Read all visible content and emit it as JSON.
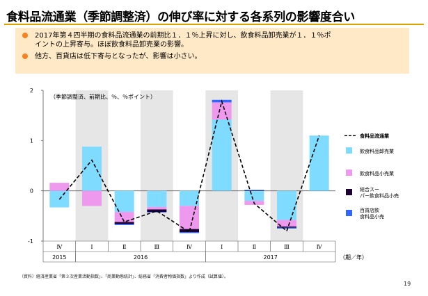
{
  "title": "食料品流通業（季節調整済）の伸び率に対する各系列の影響度合い",
  "bullets": [
    {
      "lines": [
        "2017年第４四半期の食料品流通業の前期比１．１％上昇に対し、飲食料品卸売業が１．１％ポ",
        "イントの上昇寄与。ほぼ飲食料品卸売業の影響。"
      ]
    },
    {
      "lines": [
        "他方、百貨店は低下寄与となったが、影響は小さい。"
      ]
    }
  ],
  "colors": {
    "accent_rule": "#d9a300",
    "bullet_dot": "#f58220",
    "bullet_bg": "#ffe9c7",
    "shade": "#e6e6e6",
    "wholesale": "#7fdbff",
    "retail": "#ee99ee",
    "supermarket": "#1a0033",
    "department_store": "#3366ff"
  },
  "chart_data": {
    "type": "bar",
    "subtitle": "（季節調整済、前期比、％、％ポイント）",
    "ylim": [
      -1,
      2
    ],
    "yticks": [
      2,
      1,
      0,
      -1
    ],
    "categories": [
      "Ⅳ",
      "Ⅰ",
      "Ⅱ",
      "Ⅲ",
      "Ⅳ",
      "Ⅰ",
      "Ⅱ",
      "Ⅲ",
      "Ⅳ"
    ],
    "year_labels": [
      {
        "label": "2015",
        "from": 0,
        "to": 0
      },
      {
        "label": "2016",
        "from": 1,
        "to": 4
      },
      {
        "label": "2017",
        "from": 5,
        "to": 8
      }
    ],
    "shaded_categories": [
      1,
      3,
      5,
      7
    ],
    "x_unit": "（期／年）",
    "series": [
      {
        "name": "飲食料品卸売業",
        "kind": "bar",
        "color": "#7fdbff",
        "values": [
          -0.33,
          0.88,
          -0.42,
          -0.32,
          -0.3,
          1.42,
          -0.2,
          -0.58,
          1.1
        ]
      },
      {
        "name": "飲食料品小売業",
        "kind": "bar",
        "color": "#ee99ee",
        "values": [
          0.16,
          -0.3,
          -0.2,
          -0.05,
          -0.46,
          0.34,
          -0.08,
          -0.13,
          0.0
        ]
      },
      {
        "name": "総合スーパー飲食料品小売",
        "kind": "bar",
        "color": "#1a0033",
        "values": [
          0.0,
          0.0,
          -0.04,
          -0.05,
          -0.06,
          0.0,
          0.01,
          -0.02,
          0.0
        ]
      },
      {
        "name": "百貨店飲食料品小売",
        "kind": "bar",
        "color": "#3366ff",
        "values": [
          0.0,
          0.0,
          -0.02,
          -0.01,
          -0.02,
          0.05,
          0.01,
          -0.02,
          0.0
        ]
      },
      {
        "name": "食料品流通業",
        "kind": "line",
        "color": "#000000",
        "values": [
          -0.17,
          0.61,
          -0.62,
          -0.4,
          -0.82,
          1.78,
          -0.25,
          -0.8,
          1.1
        ]
      }
    ],
    "legend_position": "right"
  },
  "source": "（資料）経済産業省「第３次産業活動指数」、「商業動態統計」、総務省「消費者物価指数」より作成（試算値）。",
  "page_number": "19"
}
